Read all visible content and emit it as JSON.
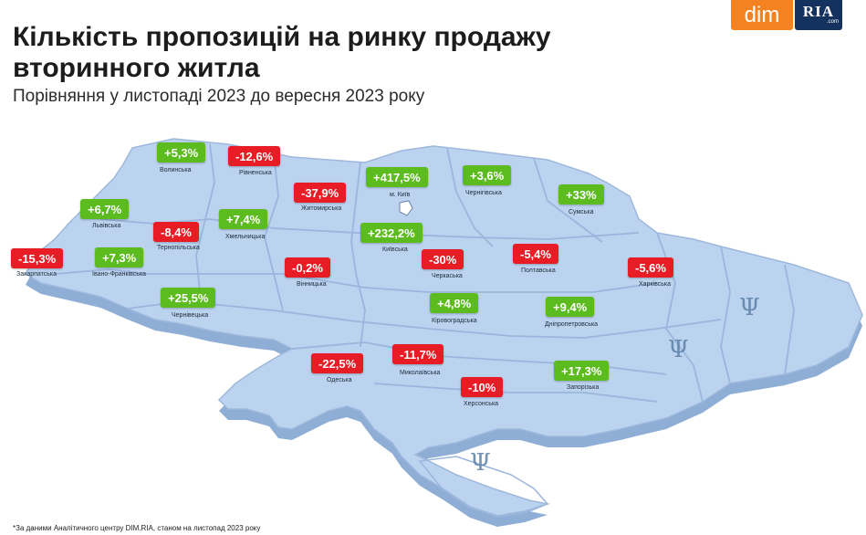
{
  "header": {
    "title": "Кількість пропозицій на ринку продажу вторинного житла",
    "subtitle": "Порівняння у листопаді 2023 до вересня 2023 року"
  },
  "logos": {
    "dim": "dim",
    "ria": "RIA",
    "ria_domain": ".com"
  },
  "footnote": "*За даними Аналітичного центру DIM.RIA, станом на листопад 2023 року",
  "colors": {
    "positive": "#5cbb1f",
    "negative": "#e81c24",
    "map_fill": "#b8d0ee",
    "map_edge": "#8aa9d2"
  },
  "regions": [
    {
      "name": "Волинська",
      "change": "+5,3%"
    },
    {
      "name": "Рівненська",
      "change": "-12,6%"
    },
    {
      "name": "Житомирська",
      "change": "-37,9%"
    },
    {
      "name": "м. Київ",
      "change": "+417,5%"
    },
    {
      "name": "Чернігівська",
      "change": "+3,6%"
    },
    {
      "name": "Сумська",
      "change": "+33%"
    },
    {
      "name": "Львівська",
      "change": "+6,7%"
    },
    {
      "name": "Хмельницька",
      "change": "+7,4%"
    },
    {
      "name": "Тернопільська",
      "change": "-8,4%"
    },
    {
      "name": "Київська",
      "change": "+232,2%"
    },
    {
      "name": "Закарпатська",
      "change": "-15,3%"
    },
    {
      "name": "Івано-Франківська",
      "change": "+7,3%"
    },
    {
      "name": "Вінницька",
      "change": "-0,2%"
    },
    {
      "name": "Черкаська",
      "change": "-30%"
    },
    {
      "name": "Полтавська",
      "change": "-5,4%"
    },
    {
      "name": "Харківська",
      "change": "-5,6%"
    },
    {
      "name": "Чернівецька",
      "change": "+25,5%"
    },
    {
      "name": "Кіровоградська",
      "change": "+4,8%"
    },
    {
      "name": "Дніпропетровська",
      "change": "+9,4%"
    },
    {
      "name": "Одеська",
      "change": "-22,5%"
    },
    {
      "name": "Миколаївська",
      "change": "-11,7%"
    },
    {
      "name": "Запорізька",
      "change": "+17,3%"
    },
    {
      "name": "Херсонська",
      "change": "-10%"
    }
  ]
}
